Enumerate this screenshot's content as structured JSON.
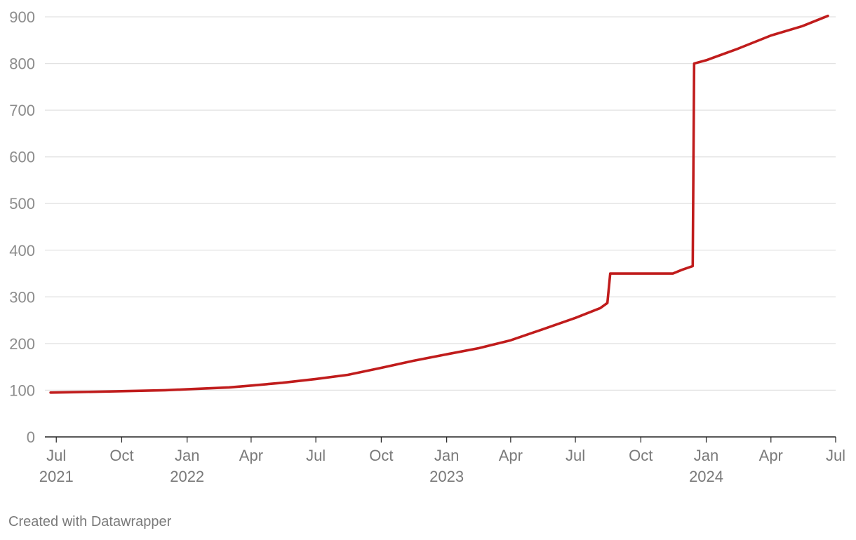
{
  "chart_data": {
    "type": "line",
    "title": "",
    "xlabel": "",
    "ylabel": "",
    "x_axis": {
      "type": "date",
      "range": [
        "2021-06-15",
        "2024-07-01"
      ],
      "ticks": [
        {
          "date": "2021-07-01",
          "label": "Jul",
          "year": "2021"
        },
        {
          "date": "2021-10-01",
          "label": "Oct",
          "year": ""
        },
        {
          "date": "2022-01-01",
          "label": "Jan",
          "year": "2022"
        },
        {
          "date": "2022-04-01",
          "label": "Apr",
          "year": ""
        },
        {
          "date": "2022-07-01",
          "label": "Jul",
          "year": ""
        },
        {
          "date": "2022-10-01",
          "label": "Oct",
          "year": ""
        },
        {
          "date": "2023-01-01",
          "label": "Jan",
          "year": "2023"
        },
        {
          "date": "2023-04-01",
          "label": "Apr",
          "year": ""
        },
        {
          "date": "2023-07-01",
          "label": "Jul",
          "year": ""
        },
        {
          "date": "2023-10-01",
          "label": "Oct",
          "year": ""
        },
        {
          "date": "2024-01-01",
          "label": "Jan",
          "year": "2024"
        },
        {
          "date": "2024-04-01",
          "label": "Apr",
          "year": ""
        },
        {
          "date": "2024-07-01",
          "label": "Jul",
          "year": ""
        }
      ]
    },
    "y_axis": {
      "range": [
        0,
        900
      ],
      "ticks": [
        0,
        100,
        200,
        300,
        400,
        500,
        600,
        700,
        800,
        900
      ],
      "grid": true
    },
    "legend": "none",
    "series": [
      {
        "color": "#c01c1c",
        "points": [
          {
            "x": "2021-06-23",
            "y": 95
          },
          {
            "x": "2021-08-01",
            "y": 96
          },
          {
            "x": "2021-10-01",
            "y": 98
          },
          {
            "x": "2021-12-01",
            "y": 100
          },
          {
            "x": "2022-01-01",
            "y": 102
          },
          {
            "x": "2022-03-01",
            "y": 106
          },
          {
            "x": "2022-04-01",
            "y": 110
          },
          {
            "x": "2022-05-15",
            "y": 116
          },
          {
            "x": "2022-07-01",
            "y": 124
          },
          {
            "x": "2022-08-15",
            "y": 133
          },
          {
            "x": "2022-10-01",
            "y": 148
          },
          {
            "x": "2022-11-15",
            "y": 163
          },
          {
            "x": "2023-01-01",
            "y": 177
          },
          {
            "x": "2023-02-15",
            "y": 190
          },
          {
            "x": "2023-04-01",
            "y": 207
          },
          {
            "x": "2023-05-15",
            "y": 230
          },
          {
            "x": "2023-07-01",
            "y": 255
          },
          {
            "x": "2023-08-05",
            "y": 276
          },
          {
            "x": "2023-08-15",
            "y": 287
          },
          {
            "x": "2023-08-19",
            "y": 350
          },
          {
            "x": "2023-11-15",
            "y": 350
          },
          {
            "x": "2023-11-28",
            "y": 358
          },
          {
            "x": "2023-12-13",
            "y": 366
          },
          {
            "x": "2023-12-15",
            "y": 800
          },
          {
            "x": "2024-01-01",
            "y": 807
          },
          {
            "x": "2024-02-15",
            "y": 832
          },
          {
            "x": "2024-04-01",
            "y": 860
          },
          {
            "x": "2024-05-15",
            "y": 880
          },
          {
            "x": "2024-06-20",
            "y": 902
          }
        ]
      }
    ]
  },
  "footer": {
    "credit": "Created with Datawrapper"
  }
}
